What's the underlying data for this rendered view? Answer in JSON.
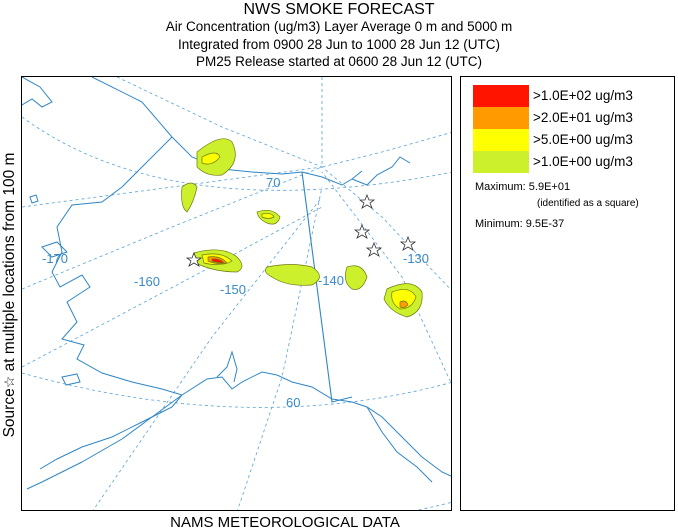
{
  "header": {
    "title": "NWS SMOKE FORECAST",
    "line2": "Air Concentration (ug/m3) Layer Average     0 m and  5000 m",
    "line3": "Integrated from 0900 28 Jun to 1000 28 Jun 12 (UTC)",
    "line4": "PM25 Release started at 0600 28 Jun 12 (UTC)"
  },
  "side_label": {
    "prefix": "Source",
    "star": "☆",
    "text": " at multiple locations    from   100 m"
  },
  "footer": "NAMS METEOROLOGICAL DATA",
  "map": {
    "lon_labels": [
      "-170",
      "-160",
      "-150",
      "-140",
      "-130"
    ],
    "lat_labels": [
      "70",
      "60"
    ],
    "colors": {
      "coast": "#2f86c4",
      "grid": "#5aa2d6",
      "c100": "#ff1400",
      "c20": "#ff9a00",
      "c5": "#ffff00",
      "c1": "#ccf02c",
      "contour": "#6e7a10"
    }
  },
  "legend": {
    "items": [
      {
        "label": ">1.0E+02 ug/m3",
        "color": "#ff1400"
      },
      {
        "label": ">2.0E+01 ug/m3",
        "color": "#ff9a00"
      },
      {
        "label": ">5.0E+00 ug/m3",
        "color": "#ffff00"
      },
      {
        "label": ">1.0E+00 ug/m3",
        "color": "#ccf02c"
      }
    ],
    "maximum": "Maximum: 5.9E+01",
    "maximum_note": "(identified as a square)",
    "minimum": "Minimum: 9.5E-37"
  }
}
